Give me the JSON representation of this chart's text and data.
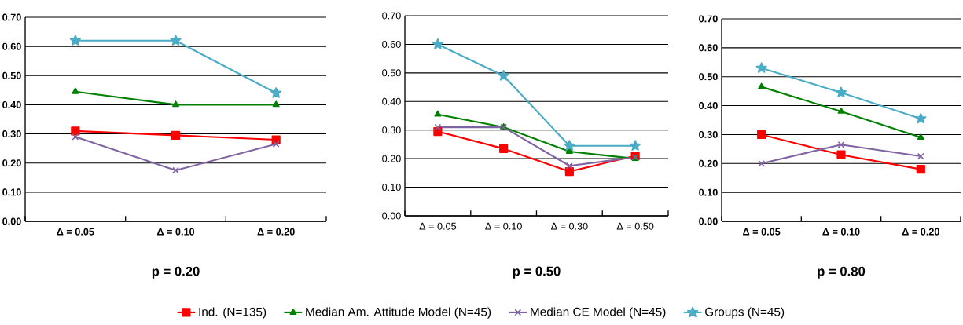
{
  "chart_data": [
    {
      "type": "line",
      "xlabel": "p = 0.20",
      "categories": [
        "Δ = 0.05",
        "Δ = 0.10",
        "Δ = 0.20"
      ],
      "ylim": [
        0,
        0.7
      ],
      "yticks": [
        {
          "value": 0,
          "label": "0.00"
        },
        {
          "value": 0.1,
          "label": "0.10"
        },
        {
          "value": 0.2,
          "label": "0.20"
        },
        {
          "value": 0.3,
          "label": "0.30"
        },
        {
          "value": 0.4,
          "label": "0.40"
        },
        {
          "value": 0.5,
          "label": "0.50"
        },
        {
          "value": 0.6,
          "label": "0.60"
        },
        {
          "value": 0.7,
          "label": "0.70"
        }
      ],
      "grid": "y",
      "legend": "bottom",
      "line_style": "solid",
      "series": [
        {
          "name": "Ind. (N=135)",
          "color": "#ff0000",
          "marker": "square",
          "values": [
            0.31,
            0.295,
            0.28
          ]
        },
        {
          "name": "Median Am. Attitude Model (N=45)",
          "color": "#008000",
          "marker": "triangle",
          "values": [
            0.445,
            0.4,
            0.4
          ]
        },
        {
          "name": "Median CE Model (N=45)",
          "color": "#8064a2",
          "marker": "cross",
          "values": [
            0.29,
            0.175,
            0.265
          ]
        },
        {
          "name": "Groups (N=45)",
          "color": "#4bacc6",
          "marker": "star",
          "values": [
            0.62,
            0.62,
            0.44
          ]
        }
      ]
    },
    {
      "type": "line",
      "xlabel": "p = 0.50",
      "categories": [
        "Δ = 0.05",
        "Δ = 0.10",
        "Δ = 0.30",
        "Δ = 0.50"
      ],
      "ylim": [
        0,
        0.7
      ],
      "yticks": [
        {
          "value": 0,
          "label": "0.00"
        },
        {
          "value": 0.1,
          "label": "0.10"
        },
        {
          "value": 0.2,
          "label": "0.20"
        },
        {
          "value": 0.3,
          "label": "0.30"
        },
        {
          "value": 0.4,
          "label": "0.40"
        },
        {
          "value": 0.5,
          "label": "0.50"
        },
        {
          "value": 0.6,
          "label": "0.60"
        },
        {
          "value": 0.7,
          "label": "0.70"
        }
      ],
      "grid": "y",
      "line_style": "solid",
      "series": [
        {
          "color": "#ff0000",
          "marker": "square",
          "values": [
            0.295,
            0.235,
            0.155,
            0.21
          ]
        },
        {
          "color": "#008000",
          "marker": "triangle",
          "values": [
            0.355,
            0.31,
            0.225,
            0.2
          ]
        },
        {
          "color": "#8064a2",
          "marker": "cross",
          "values": [
            0.31,
            0.31,
            0.175,
            0.205
          ]
        },
        {
          "color": "#4bacc6",
          "marker": "star",
          "values": [
            0.6,
            0.49,
            0.245,
            0.245
          ]
        }
      ]
    },
    {
      "type": "line",
      "xlabel": "p = 0.80",
      "categories": [
        "Δ = 0.05",
        "Δ = 0.10",
        "Δ = 0.20"
      ],
      "ylim": [
        0,
        0.7
      ],
      "yticks": [
        {
          "value": 0,
          "label": "0.00"
        },
        {
          "value": 0.1,
          "label": "0.10"
        },
        {
          "value": 0.2,
          "label": "0.20"
        },
        {
          "value": 0.3,
          "label": "0.30"
        },
        {
          "value": 0.4,
          "label": "0.40"
        },
        {
          "value": 0.5,
          "label": "0.50"
        },
        {
          "value": 0.6,
          "label": "0.60"
        },
        {
          "value": 0.7,
          "label": "0.70"
        }
      ],
      "grid": "y",
      "line_style": "solid",
      "series": [
        {
          "color": "#ff0000",
          "marker": "square",
          "values": [
            0.3,
            0.23,
            0.18
          ]
        },
        {
          "color": "#008000",
          "marker": "triangle",
          "values": [
            0.465,
            0.38,
            0.29
          ]
        },
        {
          "color": "#8064a2",
          "marker": "cross",
          "values": [
            0.2,
            0.265,
            0.225
          ]
        },
        {
          "color": "#4bacc6",
          "marker": "star",
          "values": [
            0.53,
            0.445,
            0.355
          ]
        }
      ]
    }
  ]
}
